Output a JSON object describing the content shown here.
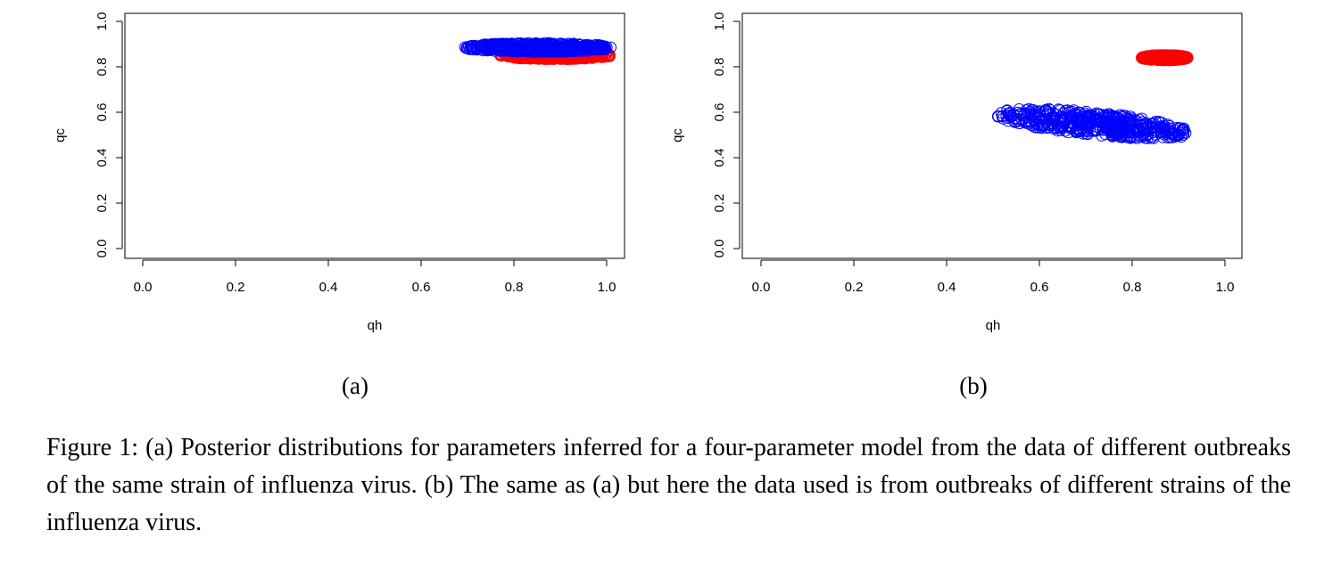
{
  "chart_data": [
    {
      "type": "scatter",
      "panel_label": "(a)",
      "xlabel": "qh",
      "ylabel": "qc",
      "xlim": [
        0.0,
        1.0
      ],
      "ylim": [
        0.0,
        1.0
      ],
      "xticks": [
        "0.0",
        "0.2",
        "0.4",
        "0.6",
        "0.8",
        "1.0"
      ],
      "yticks": [
        "0.0",
        "0.2",
        "0.4",
        "0.6",
        "0.8",
        "1.0"
      ],
      "grid": false,
      "series": [
        {
          "color": "#ff0000",
          "center": [
            0.89,
            0.85
          ],
          "spread_x": 0.12,
          "spread_y": 0.017,
          "slope": 0.0
        },
        {
          "color": "#0000ff",
          "center": [
            0.85,
            0.885
          ],
          "spread_x": 0.16,
          "spread_y": 0.02,
          "slope": 0.0
        }
      ]
    },
    {
      "type": "scatter",
      "panel_label": "(b)",
      "xlabel": "qh",
      "ylabel": "qc",
      "xlim": [
        0.0,
        1.0
      ],
      "ylim": [
        0.0,
        1.0
      ],
      "xticks": [
        "0.0",
        "0.2",
        "0.4",
        "0.6",
        "0.8",
        "1.0"
      ],
      "yticks": [
        "0.0",
        "0.2",
        "0.4",
        "0.6",
        "0.8",
        "1.0"
      ],
      "grid": false,
      "series": [
        {
          "color": "#ff0000",
          "center": [
            0.87,
            0.84
          ],
          "spread_x": 0.05,
          "spread_y": 0.012,
          "slope": 0.0
        },
        {
          "color": "#0000ff",
          "center": [
            0.715,
            0.55
          ],
          "spread_x": 0.21,
          "spread_y": 0.052,
          "slope": -0.2
        }
      ]
    }
  ],
  "caption": {
    "sub_a": "(a)",
    "sub_b": "(b)",
    "text": "Figure 1: (a) Posterior distributions for parameters inferred for a four-parameter model from the data of different outbreaks of the same strain of influenza virus. (b) The same as (a) but here the data used is from outbreaks of different strains of the influenza virus."
  }
}
